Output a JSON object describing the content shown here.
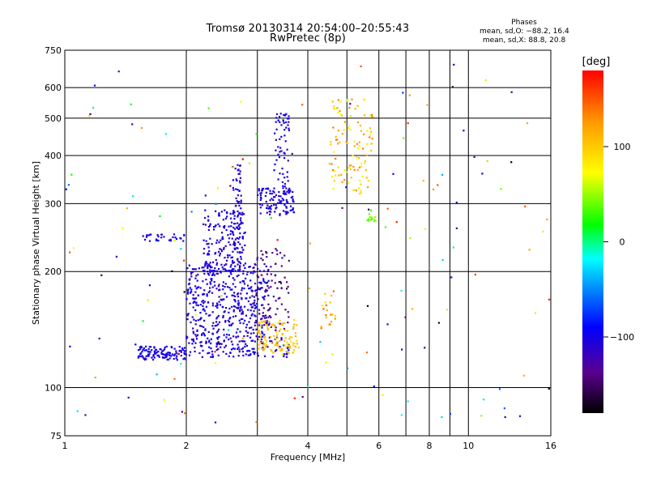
{
  "header": {
    "title_line1": "Tromsø 20130314 20:54:00–20:55:43",
    "title_line2": "RwPretec (8p)",
    "stats_title": "Phases",
    "stats_o": "mean, sd,O: −88.2, 16.4",
    "stats_x": "mean, sd,X:  88.8, 20.8"
  },
  "colorbar": {
    "label": "[deg]",
    "range": [
      -180,
      180
    ],
    "ticks": [
      {
        "value": 100,
        "label": "100"
      },
      {
        "value": 0,
        "label": "0"
      },
      {
        "value": -100,
        "label": "−100"
      }
    ],
    "palette": [
      "#000000",
      "#5a0090",
      "#0000ff",
      "#00a0ff",
      "#00ffff",
      "#00ff00",
      "#ffff00",
      "#ff9900",
      "#ff0000"
    ]
  },
  "chart_data": {
    "type": "scatter",
    "title": "Tromsø 20130314 20:54:00–20:55:43",
    "subtitle": "RwPretec (8p)",
    "xlabel": "Frequency [MHz]",
    "ylabel": "Stationary phase Virtual Height [km]",
    "x_scale": "log",
    "y_scale": "log",
    "xlim": [
      1,
      16
    ],
    "ylim": [
      75,
      750
    ],
    "x_ticks": [
      1,
      2,
      4,
      6,
      8,
      10,
      16
    ],
    "x_tick_labels": [
      "1",
      "2",
      "4",
      "6",
      "8",
      "10",
      "16"
    ],
    "y_ticks": [
      75,
      100,
      200,
      300,
      400,
      500,
      600,
      750
    ],
    "y_tick_labels": [
      "75",
      "100",
      "200",
      "300",
      "400",
      "500",
      "600",
      "750"
    ],
    "grid": true,
    "color_scale": "phase [deg]",
    "clusters": [
      {
        "x": [
          1.52,
          2.0
        ],
        "y": [
          118,
          128
        ],
        "phase": [
          -110,
          -95
        ],
        "n": 120
      },
      {
        "x": [
          2.0,
          3.6
        ],
        "y": [
          120,
          135
        ],
        "phase": [
          -115,
          -95
        ],
        "n": 140
      },
      {
        "x": [
          2.0,
          3.2
        ],
        "y": [
          135,
          210
        ],
        "phase": [
          -120,
          -90
        ],
        "n": 420
      },
      {
        "x": [
          2.2,
          2.8
        ],
        "y": [
          200,
          290
        ],
        "phase": [
          -115,
          -95
        ],
        "n": 160
      },
      {
        "x": [
          2.6,
          2.75
        ],
        "y": [
          200,
          380
        ],
        "phase": [
          -115,
          -95
        ],
        "n": 80
      },
      {
        "x": [
          1.55,
          2.0
        ],
        "y": [
          240,
          250
        ],
        "phase": [
          -110,
          -95
        ],
        "n": 30
      },
      {
        "x": [
          3.0,
          3.7
        ],
        "y": [
          280,
          330
        ],
        "phase": [
          -115,
          -95
        ],
        "n": 110
      },
      {
        "x": [
          3.3,
          3.6
        ],
        "y": [
          330,
          520
        ],
        "phase": [
          -115,
          -90
        ],
        "n": 60
      },
      {
        "x": [
          2.9,
          3.6
        ],
        "y": [
          140,
          230
        ],
        "phase": [
          -160,
          -120
        ],
        "n": 90
      },
      {
        "x": [
          3.0,
          3.8
        ],
        "y": [
          122,
          150
        ],
        "phase": [
          90,
          115
        ],
        "n": 110
      },
      {
        "x": [
          4.5,
          5.8
        ],
        "y": [
          320,
          560
        ],
        "phase": [
          60,
          140
        ],
        "n": 110
      },
      {
        "x": [
          5.6,
          5.9
        ],
        "y": [
          270,
          290
        ],
        "phase": [
          30,
          50
        ],
        "n": 15
      },
      {
        "x": [
          4.3,
          4.7
        ],
        "y": [
          140,
          180
        ],
        "phase": [
          90,
          150
        ],
        "n": 20
      },
      {
        "x": [
          1.0,
          16.0
        ],
        "y": [
          80,
          700
        ],
        "phase": [
          -180,
          180
        ],
        "n": 150
      }
    ]
  }
}
